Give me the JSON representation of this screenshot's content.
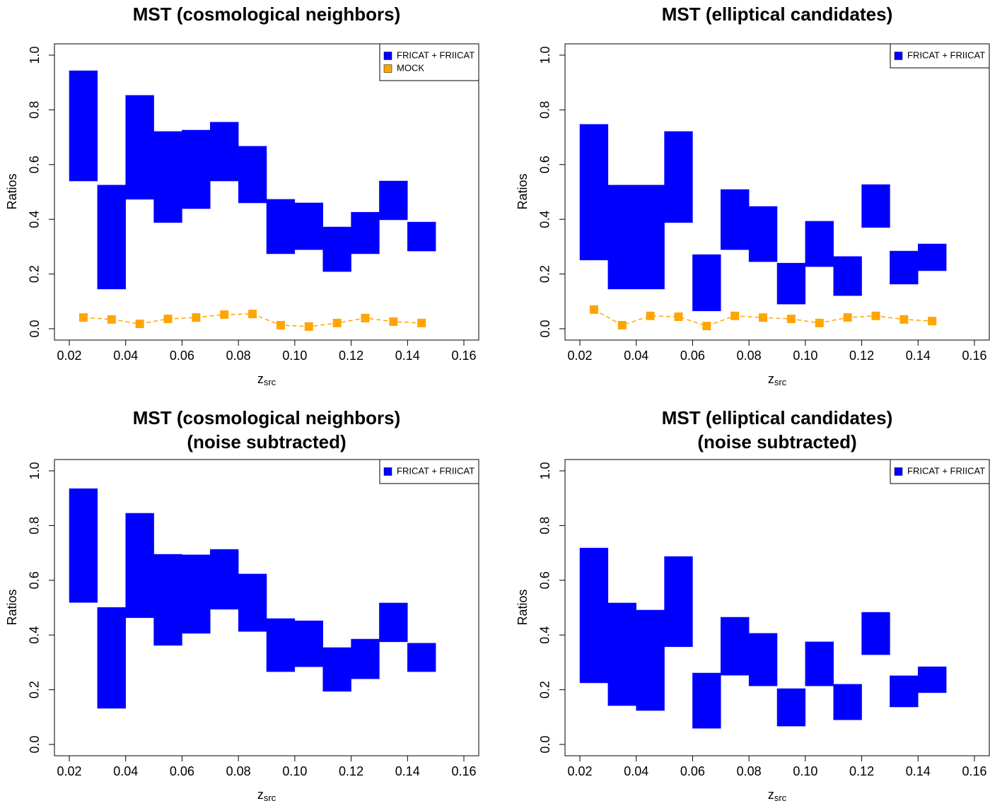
{
  "chart_data": [
    {
      "type": "range-bar",
      "title": [
        "MST (cosmological neighbors)"
      ],
      "xlabel": "z",
      "xlabel_sub": "src",
      "ylabel": "Ratios",
      "bins": [
        0.02,
        0.03,
        0.04,
        0.05,
        0.06,
        0.07,
        0.08,
        0.09,
        0.1,
        0.11,
        0.12,
        0.13,
        0.14,
        0.15
      ],
      "xlim": [
        0.02,
        0.16
      ],
      "ylim": [
        0,
        1
      ],
      "xticks": [
        0.02,
        0.04,
        0.06,
        0.08,
        {
          "value": 0.1,
          "label": "0.10"
        },
        0.12,
        0.14,
        0.16
      ],
      "yticks": [
        {
          "value": 0,
          "label": "0.0"
        },
        0.2,
        0.4,
        0.6,
        0.8,
        {
          "value": 1,
          "label": "1.0"
        }
      ],
      "legend": "topright",
      "series": [
        {
          "name": "FRICAT + FRIICAT",
          "color": "#0000ff",
          "low": [
            0.54,
            0.145,
            0.473,
            0.388,
            0.439,
            0.54,
            0.46,
            0.274,
            0.289,
            0.209,
            0.274,
            0.398,
            0.284
          ],
          "high": [
            0.943,
            0.525,
            0.853,
            0.721,
            0.726,
            0.755,
            0.667,
            0.473,
            0.46,
            0.372,
            0.426,
            0.54,
            0.39
          ]
        },
        {
          "name": "MOCK",
          "color": "#ffa500",
          "marker": "square",
          "linestyle": "dashed",
          "x": [
            0.025,
            0.035,
            0.045,
            0.055,
            0.065,
            0.075,
            0.085,
            0.095,
            0.105,
            0.115,
            0.125,
            0.135,
            0.145
          ],
          "values": [
            0.041,
            0.034,
            0.018,
            0.036,
            0.041,
            0.052,
            0.054,
            0.013,
            0.008,
            0.021,
            0.039,
            0.026,
            0.021
          ]
        }
      ]
    },
    {
      "type": "range-bar",
      "title": [
        "MST (elliptical candidates)"
      ],
      "xlabel": "z",
      "xlabel_sub": "src",
      "ylabel": "Ratios",
      "bins": [
        0.02,
        0.03,
        0.04,
        0.05,
        0.06,
        0.07,
        0.08,
        0.09,
        0.1,
        0.11,
        0.12,
        0.13,
        0.14,
        0.15
      ],
      "xlim": [
        0.02,
        0.16
      ],
      "ylim": [
        0,
        1
      ],
      "xticks": [
        0.02,
        0.04,
        0.06,
        0.08,
        {
          "value": 0.1,
          "label": "0.10"
        },
        0.12,
        0.14,
        0.16
      ],
      "yticks": [
        {
          "value": 0,
          "label": "0.0"
        },
        0.2,
        0.4,
        0.6,
        0.8,
        {
          "value": 1,
          "label": "1.0"
        }
      ],
      "legend": "topright",
      "series": [
        {
          "name": "FRICAT + FRIICAT",
          "color": "#0000ff",
          "low": [
            0.251,
            0.145,
            0.145,
            0.388,
            0.065,
            0.289,
            0.245,
            0.09,
            0.227,
            0.121,
            0.37,
            0.163,
            0.212
          ],
          "high": [
            0.747,
            0.525,
            0.525,
            0.721,
            0.271,
            0.509,
            0.447,
            0.24,
            0.393,
            0.264,
            0.527,
            0.284,
            0.31
          ]
        },
        {
          "color": "#ffa500",
          "marker": "square",
          "linestyle": "dashed",
          "x": [
            0.025,
            0.035,
            0.045,
            0.055,
            0.065,
            0.075,
            0.085,
            0.095,
            0.105,
            0.115,
            0.125,
            0.135,
            0.145
          ],
          "values": [
            0.07,
            0.013,
            0.047,
            0.044,
            0.01,
            0.047,
            0.041,
            0.036,
            0.021,
            0.041,
            0.047,
            0.034,
            0.028
          ]
        }
      ]
    },
    {
      "type": "range-bar",
      "title": [
        "MST (cosmological neighbors)",
        "(noise subtracted)"
      ],
      "xlabel": "z",
      "xlabel_sub": "src",
      "ylabel": "Ratios",
      "bins": [
        0.02,
        0.03,
        0.04,
        0.05,
        0.06,
        0.07,
        0.08,
        0.09,
        0.1,
        0.11,
        0.12,
        0.13,
        0.14,
        0.15
      ],
      "xlim": [
        0.02,
        0.16
      ],
      "ylim": [
        0,
        1
      ],
      "xticks": [
        0.02,
        0.04,
        0.06,
        0.08,
        {
          "value": 0.1,
          "label": "0.10"
        },
        0.12,
        0.14,
        0.16
      ],
      "yticks": [
        {
          "value": 0,
          "label": "0.0"
        },
        0.2,
        0.4,
        0.6,
        0.8,
        {
          "value": 1,
          "label": "1.0"
        }
      ],
      "legend": "topright",
      "series": [
        {
          "name": "FRICAT + FRIICAT",
          "color": "#0000ff",
          "low": [
            0.519,
            0.132,
            0.463,
            0.362,
            0.406,
            0.494,
            0.413,
            0.266,
            0.284,
            0.194,
            0.24,
            0.375,
            0.266
          ],
          "high": [
            0.935,
            0.501,
            0.845,
            0.695,
            0.693,
            0.713,
            0.623,
            0.46,
            0.452,
            0.354,
            0.385,
            0.517,
            0.37
          ]
        }
      ]
    },
    {
      "type": "range-bar",
      "title": [
        "MST (elliptical candidates)",
        "(noise subtracted)"
      ],
      "xlabel": "z",
      "xlabel_sub": "src",
      "ylabel": "Ratios",
      "bins": [
        0.02,
        0.03,
        0.04,
        0.05,
        0.06,
        0.07,
        0.08,
        0.09,
        0.1,
        0.11,
        0.12,
        0.13,
        0.14,
        0.15
      ],
      "xlim": [
        0.02,
        0.16
      ],
      "ylim": [
        0,
        1
      ],
      "xticks": [
        0.02,
        0.04,
        0.06,
        0.08,
        {
          "value": 0.1,
          "label": "0.10"
        },
        0.12,
        0.14,
        0.16
      ],
      "yticks": [
        {
          "value": 0,
          "label": "0.0"
        },
        0.2,
        0.4,
        0.6,
        0.8,
        {
          "value": 1,
          "label": "1.0"
        }
      ],
      "legend": "topright",
      "series": [
        {
          "name": "FRICAT + FRIICAT",
          "color": "#0000ff",
          "low": [
            0.225,
            0.142,
            0.124,
            0.357,
            0.059,
            0.253,
            0.214,
            0.067,
            0.214,
            0.09,
            0.328,
            0.137,
            0.189
          ],
          "high": [
            0.718,
            0.517,
            0.491,
            0.687,
            0.261,
            0.465,
            0.406,
            0.204,
            0.375,
            0.22,
            0.483,
            0.251,
            0.284
          ]
        }
      ]
    }
  ]
}
